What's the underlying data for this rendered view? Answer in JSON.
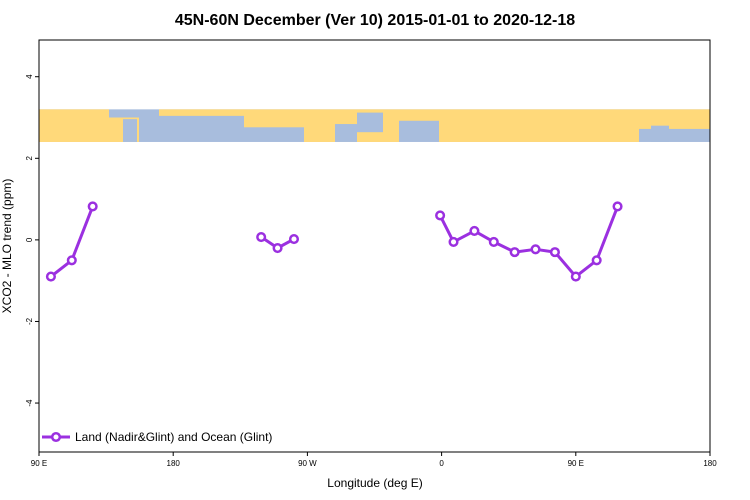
{
  "chart_data": {
    "type": "line",
    "title": "45N-60N December (Ver 10)   2015-01-01 to 2020-12-18",
    "xlabel": "Longitude (deg E)",
    "ylabel": "XCO2 - MLO trend (ppm)",
    "xlim": [
      90,
      540
    ],
    "ylim": [
      -5.2,
      4.9
    ],
    "x_ticks": [
      {
        "value": 90,
        "label": "90 E"
      },
      {
        "value": 180,
        "label": "180"
      },
      {
        "value": 270,
        "label": "90 W"
      },
      {
        "value": 360,
        "label": "0"
      },
      {
        "value": 450,
        "label": "90 E"
      },
      {
        "value": 540,
        "label": "180"
      }
    ],
    "y_ticks": [
      {
        "value": -4,
        "label": "-4"
      },
      {
        "value": -2,
        "label": "-2"
      },
      {
        "value": 0,
        "label": "0"
      },
      {
        "value": 2,
        "label": "2"
      },
      {
        "value": 4,
        "label": "4"
      }
    ],
    "map_band": {
      "y_top": 3.2,
      "y_bottom": 2.4
    },
    "colors": {
      "series": "#9b30e0",
      "ocean": "#a8bddd",
      "land": "#ffd97a"
    },
    "legend_position": "bottom-left",
    "series": [
      {
        "name": "Land (Nadir&Glint) and Ocean (Glint)",
        "segments": [
          [
            [
              98,
              -0.9
            ],
            [
              112,
              -0.5
            ],
            [
              126,
              0.82
            ]
          ],
          [
            [
              239,
              0.07
            ],
            [
              250,
              -0.2
            ],
            [
              261,
              0.02
            ]
          ],
          [
            [
              359,
              0.6
            ],
            [
              368,
              -0.05
            ],
            [
              382,
              0.22
            ],
            [
              395,
              -0.05
            ],
            [
              409,
              -0.3
            ],
            [
              423,
              -0.23
            ],
            [
              436,
              -0.3
            ],
            [
              450,
              -0.9
            ],
            [
              464,
              -0.5
            ],
            [
              478,
              0.82
            ]
          ]
        ]
      }
    ]
  }
}
